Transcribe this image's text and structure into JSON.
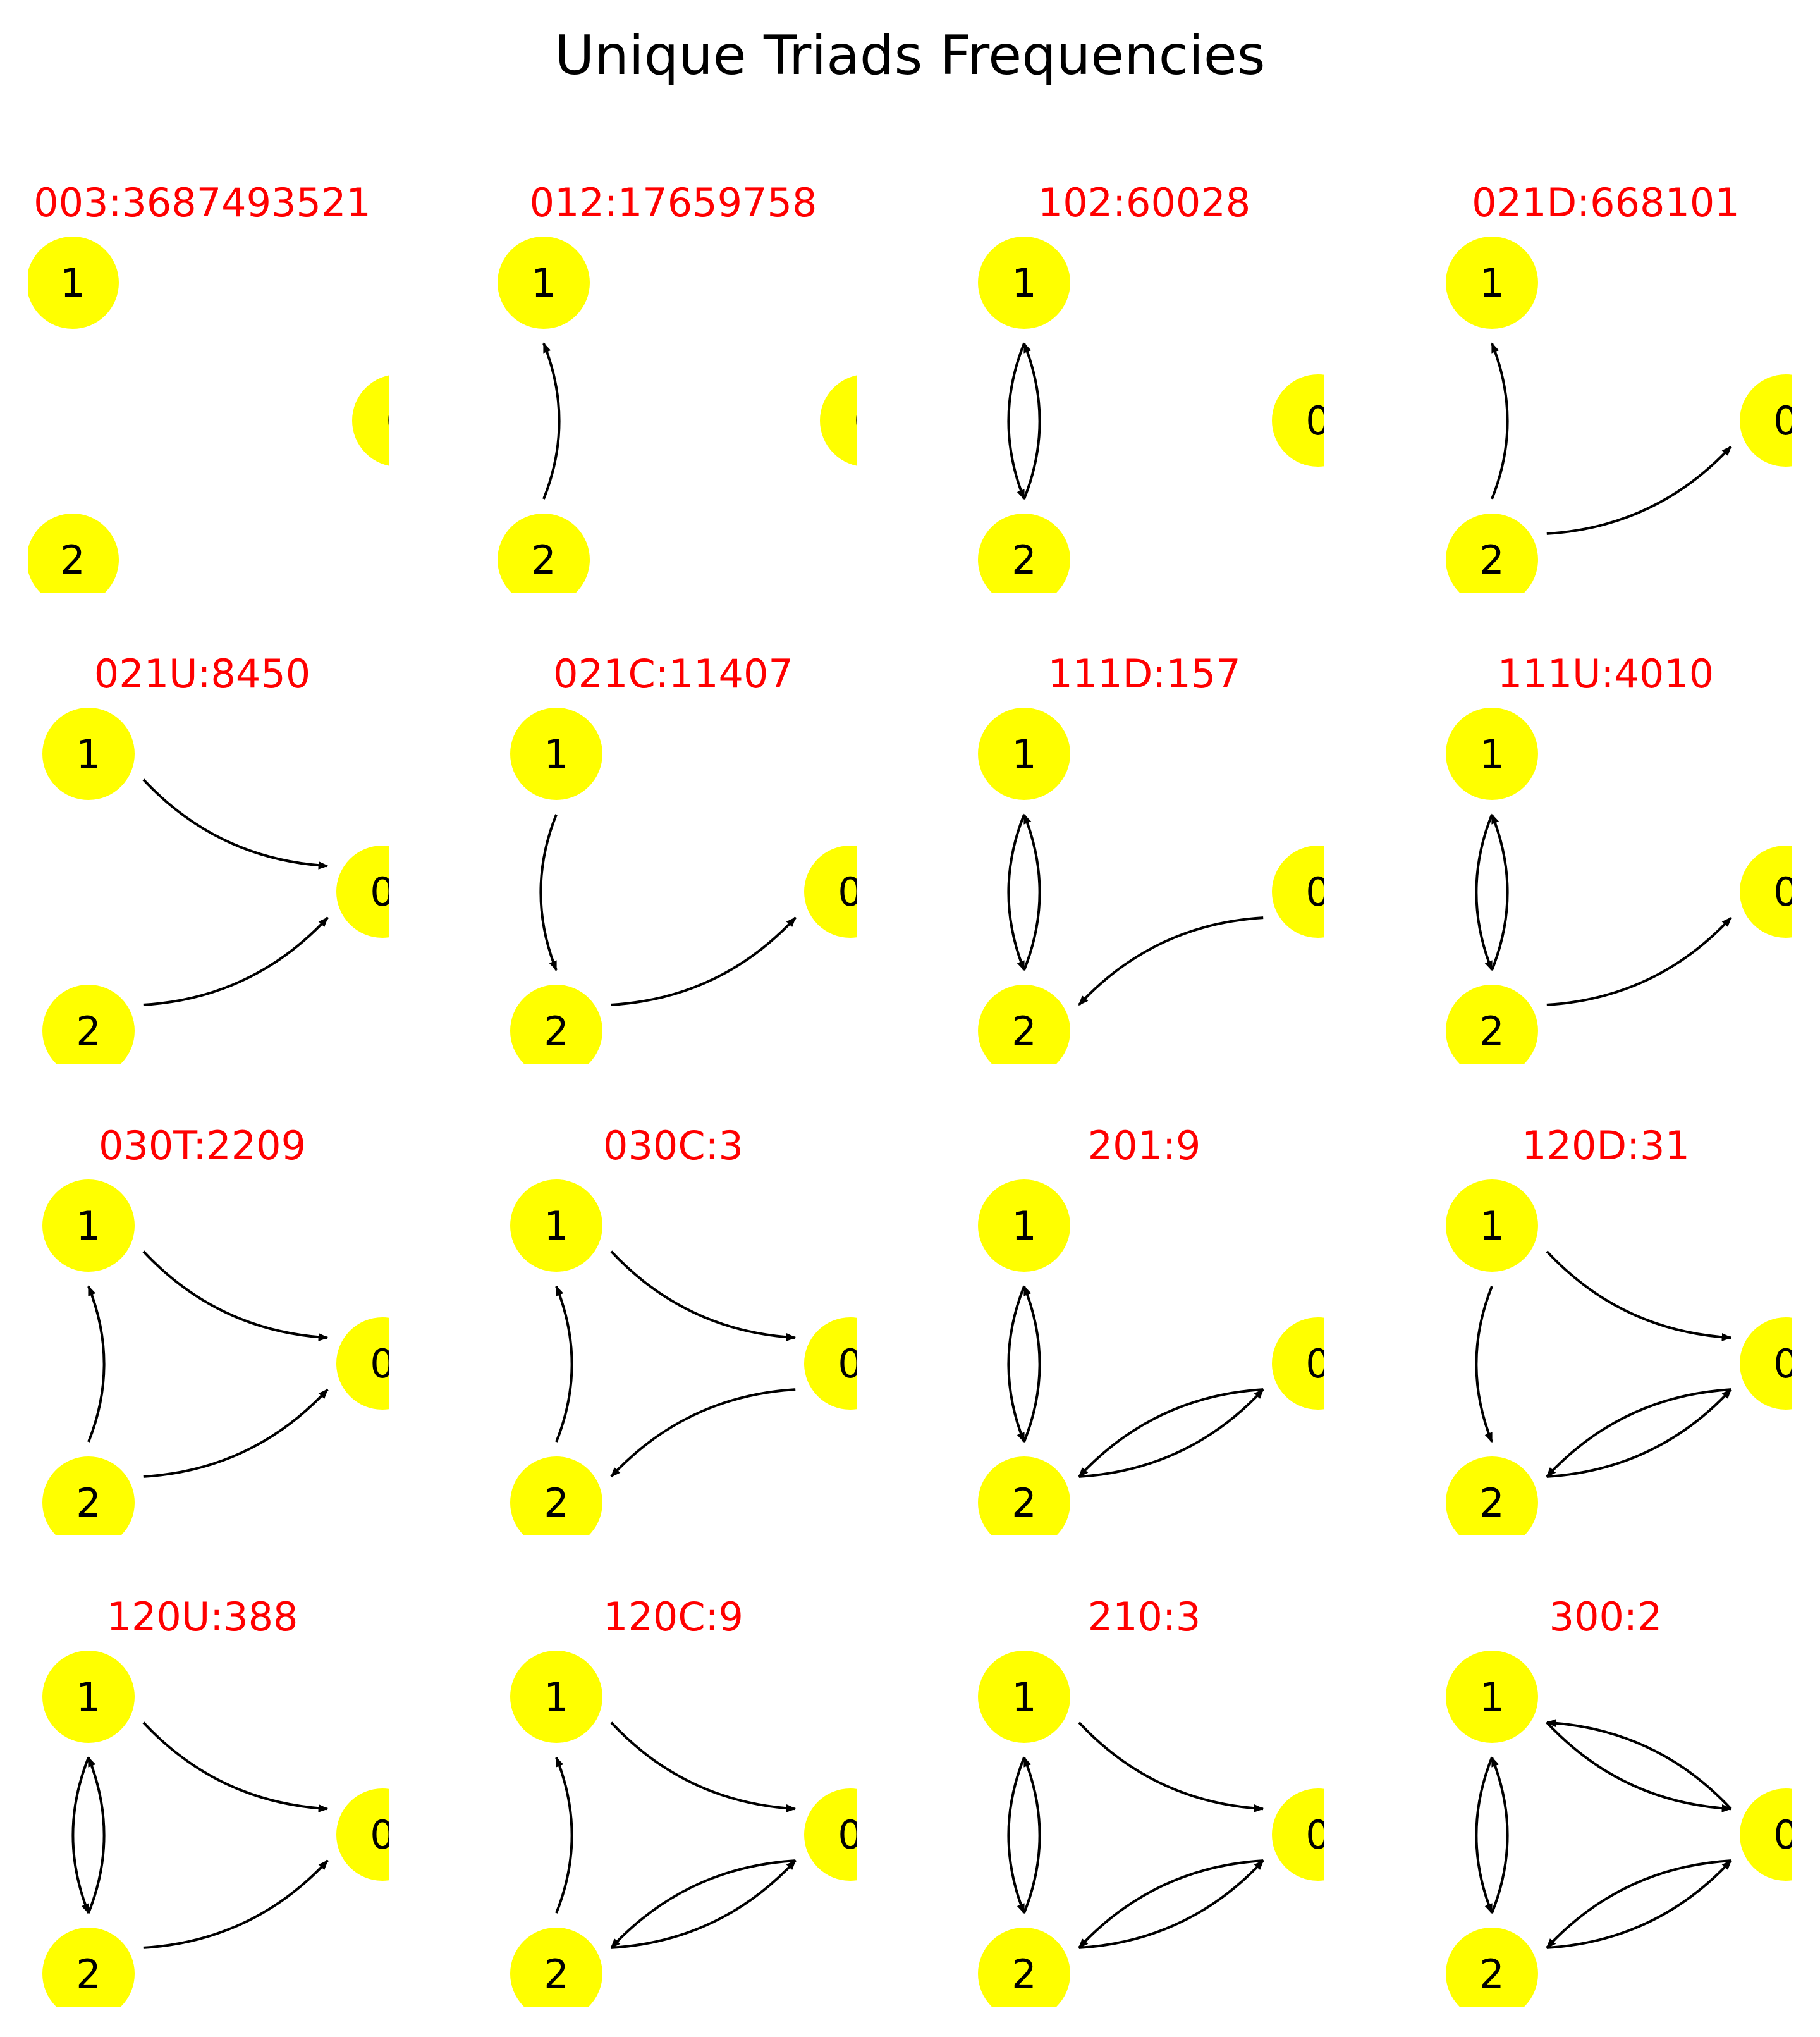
{
  "title": "Unique Triads Frequencies",
  "colors": {
    "node_fill": "#ffff00",
    "panel_title": "#ff0000",
    "edge": "#000000",
    "text": "#000000"
  },
  "node_labels": [
    "0",
    "1",
    "2"
  ],
  "panels": [
    {
      "title": "003:3687493521",
      "edges": []
    },
    {
      "title": "012:17659758",
      "edges": [
        [
          2,
          1
        ]
      ]
    },
    {
      "title": "102:60028",
      "edges": [
        [
          1,
          2
        ],
        [
          2,
          1
        ]
      ]
    },
    {
      "title": "021D:668101",
      "edges": [
        [
          2,
          1
        ],
        [
          2,
          0
        ]
      ]
    },
    {
      "title": "021U:8450",
      "edges": [
        [
          1,
          0
        ],
        [
          2,
          0
        ]
      ]
    },
    {
      "title": "021C:11407",
      "edges": [
        [
          1,
          2
        ],
        [
          2,
          0
        ]
      ]
    },
    {
      "title": "111D:157",
      "edges": [
        [
          1,
          2
        ],
        [
          2,
          1
        ],
        [
          0,
          2
        ]
      ]
    },
    {
      "title": "111U:4010",
      "edges": [
        [
          1,
          2
        ],
        [
          2,
          1
        ],
        [
          2,
          0
        ]
      ]
    },
    {
      "title": "030T:2209",
      "edges": [
        [
          2,
          1
        ],
        [
          1,
          0
        ],
        [
          2,
          0
        ]
      ]
    },
    {
      "title": "030C:3",
      "edges": [
        [
          2,
          1
        ],
        [
          1,
          0
        ],
        [
          0,
          2
        ]
      ]
    },
    {
      "title": "201:9",
      "edges": [
        [
          1,
          2
        ],
        [
          2,
          1
        ],
        [
          0,
          2
        ],
        [
          2,
          0
        ]
      ]
    },
    {
      "title": "120D:31",
      "edges": [
        [
          1,
          2
        ],
        [
          1,
          0
        ],
        [
          0,
          2
        ],
        [
          2,
          0
        ]
      ]
    },
    {
      "title": "120U:388",
      "edges": [
        [
          1,
          2
        ],
        [
          2,
          1
        ],
        [
          1,
          0
        ],
        [
          2,
          0
        ]
      ]
    },
    {
      "title": "120C:9",
      "edges": [
        [
          2,
          1
        ],
        [
          1,
          0
        ],
        [
          0,
          2
        ],
        [
          2,
          0
        ]
      ]
    },
    {
      "title": "210:3",
      "edges": [
        [
          1,
          2
        ],
        [
          2,
          1
        ],
        [
          1,
          0
        ],
        [
          0,
          2
        ],
        [
          2,
          0
        ]
      ]
    },
    {
      "title": "300:2",
      "edges": [
        [
          1,
          2
        ],
        [
          2,
          1
        ],
        [
          1,
          0
        ],
        [
          0,
          1
        ],
        [
          0,
          2
        ],
        [
          2,
          0
        ]
      ]
    }
  ]
}
